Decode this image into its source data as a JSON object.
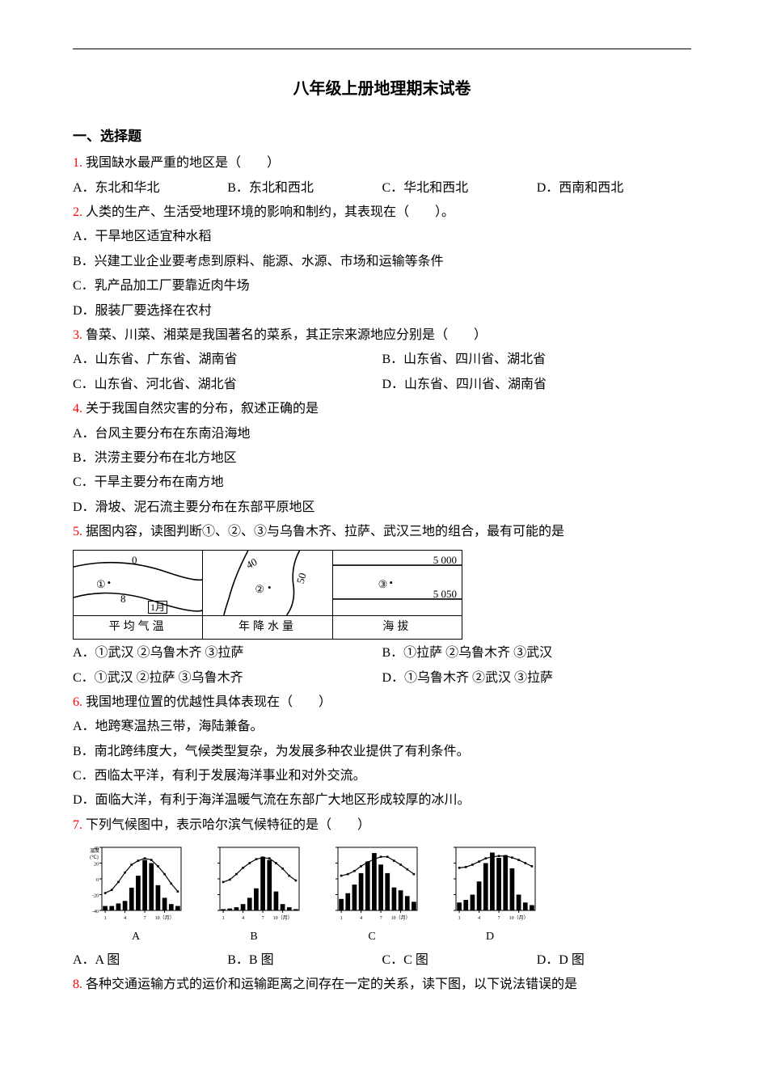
{
  "title": "八年级上册地理期末试卷",
  "section1": "一、选择题",
  "colors": {
    "qnum": "#ff0000",
    "text": "#000000",
    "bg": "#ffffff"
  },
  "q1": {
    "num": "1.",
    "stem": "我国缺水最严重的地区是（　　）",
    "opts": [
      "A．东北和华北",
      "B．东北和西北",
      "C．华北和西北",
      "D．西南和西北"
    ]
  },
  "q2": {
    "num": "2.",
    "stem": "人类的生产、生活受地理环境的影响和制约，其表现在（　　）。",
    "opts": [
      "A．干旱地区适宜种水稻",
      "B．兴建工业企业要考虑到原料、能源、水源、市场和运输等条件",
      "C．乳产品加工厂要靠近肉牛场",
      "D．服装厂要选择在农村"
    ]
  },
  "q3": {
    "num": "3.",
    "stem": "鲁菜、川菜、湘菜是我国著名的菜系，其正宗来源地应分别是（　　）",
    "opts": [
      "A．山东省、广东省、湖南省",
      "B．山东省、四川省、湖北省",
      "C．山东省、河北省、湖北省",
      "D．山东省、四川省、湖南省"
    ]
  },
  "q4": {
    "num": "4.",
    "stem": "关于我国自然灾害的分布，叙述正确的是",
    "opts": [
      "A．台风主要分布在东南沿海地",
      "B．洪涝主要分布在北方地区",
      "C．干旱主要分布在南方地",
      "D．滑坡、泥石流主要分布在东部平原地区"
    ]
  },
  "q5": {
    "num": "5.",
    "stem": "据图内容，读图判断①、②、③与乌鲁木齐、拉萨、武汉三地的组合，最有可能的是",
    "opts": [
      "A．①武汉 ②乌鲁木齐 ③拉萨",
      "B．①拉萨 ②乌鲁木齐 ③武汉",
      "C．①武汉 ②拉萨 ③乌鲁木齐",
      "D．①乌鲁木齐 ②武汉 ③拉萨"
    ],
    "figure": {
      "panel1": {
        "marker": "①",
        "line_top_label": "0",
        "line_bot_label": "8",
        "bottom_label": "1月",
        "caption": "平均气温"
      },
      "panel2": {
        "marker": "②",
        "line_left_label": "40",
        "line_right_label": "50",
        "caption": "年降水量"
      },
      "panel3": {
        "marker": "③",
        "line_top_label": "5 000",
        "line_bot_label": "5 050",
        "caption": "海拔"
      }
    }
  },
  "q6": {
    "num": "6.",
    "stem": "我国地理位置的优越性具体表现在（　　）",
    "opts": [
      "A．地跨寒温热三带，海陆兼备。",
      "B．南北跨纬度大，气候类型复杂，为发展多种农业提供了有利条件。",
      "C．西临太平洋，有利于发展海洋事业和对外交流。",
      "D．面临大洋，有利于海洋温暖气流在东部广大地区形成较厚的冰川。"
    ]
  },
  "q7": {
    "num": "7.",
    "stem": "下列气候图中，表示哈尔滨气候特征的是（　　）",
    "opts": [
      "A．A 图",
      "B．B 图",
      "C．C 图",
      "D．D 图"
    ],
    "figure": {
      "y_axis_label": "温度（℃）",
      "y_ticks": [
        "40",
        "20",
        "0",
        "-20",
        "-40"
      ],
      "x_ticks": [
        "1",
        "4",
        "7",
        "10（月）"
      ],
      "sublabels": [
        "A",
        "B",
        "C",
        "D"
      ],
      "charts": [
        {
          "temp": [
            -18,
            -14,
            -4,
            8,
            18,
            23,
            26,
            24,
            16,
            6,
            -6,
            -16
          ],
          "precip": [
            14,
            14,
            22,
            30,
            72,
            110,
            160,
            150,
            80,
            40,
            20,
            14
          ],
          "precip_max": 200
        },
        {
          "temp": [
            -4,
            -1,
            6,
            14,
            20,
            25,
            27,
            26,
            20,
            13,
            4,
            -2
          ],
          "precip": [
            4,
            6,
            10,
            20,
            40,
            70,
            170,
            160,
            60,
            20,
            10,
            4
          ],
          "precip_max": 200
        },
        {
          "temp": [
            4,
            6,
            10,
            16,
            21,
            25,
            28,
            28,
            23,
            18,
            12,
            6
          ],
          "precip": [
            40,
            60,
            90,
            130,
            170,
            200,
            160,
            130,
            80,
            70,
            50,
            30
          ],
          "precip_max": 220
        },
        {
          "temp": [
            14,
            15,
            18,
            22,
            26,
            28,
            29,
            29,
            27,
            24,
            20,
            16
          ],
          "precip": [
            30,
            40,
            60,
            110,
            180,
            220,
            200,
            210,
            160,
            60,
            30,
            20
          ],
          "precip_max": 240
        }
      ]
    }
  },
  "q8": {
    "num": "8.",
    "stem": "各种交通运输方式的运价和运输距离之间存在一定的关系，读下图，以下说法错误的是"
  }
}
